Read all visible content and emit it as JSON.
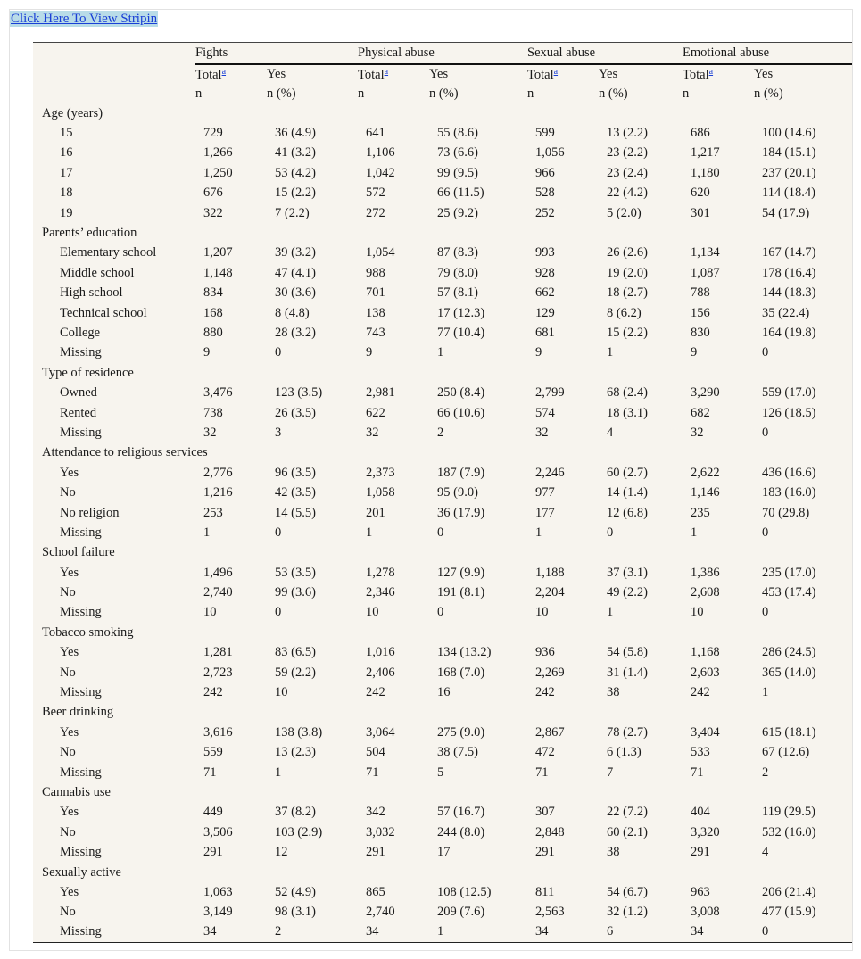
{
  "link": "Click Here To View Stripin",
  "table": {
    "groups": [
      "Fights",
      "Physical abuse",
      "Sexual abuse",
      "Emotional abuse"
    ],
    "total_label": "Total",
    "footnote_mark": "a",
    "yes_label": "Yes",
    "n_label": "n",
    "pct_label": "n (%)",
    "sections": [
      {
        "title": "Age (years)",
        "rows": [
          [
            "15",
            "729",
            "36 (4.9)",
            "641",
            "55 (8.6)",
            "599",
            "13 (2.2)",
            "686",
            "100 (14.6)"
          ],
          [
            "16",
            "1,266",
            "41 (3.2)",
            "1,106",
            "73 (6.6)",
            "1,056",
            "23 (2.2)",
            "1,217",
            "184 (15.1)"
          ],
          [
            "17",
            "1,250",
            "53 (4.2)",
            "1,042",
            "99 (9.5)",
            "966",
            "23 (2.4)",
            "1,180",
            "237 (20.1)"
          ],
          [
            "18",
            "676",
            "15 (2.2)",
            "572",
            "66 (11.5)",
            "528",
            "22 (4.2)",
            "620",
            "114 (18.4)"
          ],
          [
            "19",
            "322",
            "7 (2.2)",
            "272",
            "25 (9.2)",
            "252",
            "5 (2.0)",
            "301",
            "54 (17.9)"
          ]
        ]
      },
      {
        "title": "Parents’ education",
        "rows": [
          [
            "Elementary school",
            "1,207",
            "39 (3.2)",
            "1,054",
            "87 (8.3)",
            "993",
            "26 (2.6)",
            "1,134",
            "167 (14.7)"
          ],
          [
            "Middle school",
            "1,148",
            "47 (4.1)",
            "988",
            "79 (8.0)",
            "928",
            "19 (2.0)",
            "1,087",
            "178 (16.4)"
          ],
          [
            "High school",
            "834",
            "30 (3.6)",
            "701",
            "57 (8.1)",
            "662",
            "18 (2.7)",
            "788",
            "144 (18.3)"
          ],
          [
            "Technical school",
            "168",
            "8 (4.8)",
            "138",
            "17 (12.3)",
            "129",
            "8 (6.2)",
            "156",
            "35 (22.4)"
          ],
          [
            "College",
            "880",
            "28 (3.2)",
            "743",
            "77 (10.4)",
            "681",
            "15 (2.2)",
            "830",
            "164 (19.8)"
          ],
          [
            "Missing",
            "9",
            "0",
            "9",
            "1",
            "9",
            "1",
            "9",
            "0"
          ]
        ]
      },
      {
        "title": "Type of residence",
        "rows": [
          [
            "Owned",
            "3,476",
            "123 (3.5)",
            "2,981",
            "250 (8.4)",
            "2,799",
            "68 (2.4)",
            "3,290",
            "559 (17.0)"
          ],
          [
            "Rented",
            "738",
            "26 (3.5)",
            "622",
            "66 (10.6)",
            "574",
            "18 (3.1)",
            "682",
            "126 (18.5)"
          ],
          [
            "Missing",
            "32",
            "3",
            "32",
            "2",
            "32",
            "4",
            "32",
            "0"
          ]
        ]
      },
      {
        "title": "Attendance to religious services",
        "rows": [
          [
            "Yes",
            "2,776",
            "96 (3.5)",
            "2,373",
            "187 (7.9)",
            "2,246",
            "60 (2.7)",
            "2,622",
            "436 (16.6)"
          ],
          [
            "No",
            "1,216",
            "42 (3.5)",
            "1,058",
            "95 (9.0)",
            "977",
            "14 (1.4)",
            "1,146",
            "183 (16.0)"
          ],
          [
            "No religion",
            "253",
            "14 (5.5)",
            "201",
            "36 (17.9)",
            "177",
            "12 (6.8)",
            "235",
            "70 (29.8)"
          ],
          [
            "Missing",
            "1",
            "0",
            "1",
            "0",
            "1",
            "0",
            "1",
            "0"
          ]
        ]
      },
      {
        "title": "School failure",
        "rows": [
          [
            "Yes",
            "1,496",
            "53 (3.5)",
            "1,278",
            "127 (9.9)",
            "1,188",
            "37 (3.1)",
            "1,386",
            "235 (17.0)"
          ],
          [
            "No",
            "2,740",
            "99 (3.6)",
            "2,346",
            "191 (8.1)",
            "2,204",
            "49 (2.2)",
            "2,608",
            "453 (17.4)"
          ],
          [
            "Missing",
            "10",
            "0",
            "10",
            "0",
            "10",
            "1",
            "10",
            "0"
          ]
        ]
      },
      {
        "title": "Tobacco smoking",
        "rows": [
          [
            "Yes",
            "1,281",
            "83 (6.5)",
            "1,016",
            "134 (13.2)",
            "936",
            "54 (5.8)",
            "1,168",
            "286 (24.5)"
          ],
          [
            "No",
            "2,723",
            "59 (2.2)",
            "2,406",
            "168 (7.0)",
            "2,269",
            "31 (1.4)",
            "2,603",
            "365 (14.0)"
          ],
          [
            "Missing",
            "242",
            "10",
            "242",
            "16",
            "242",
            "38",
            "242",
            "1"
          ]
        ]
      },
      {
        "title": "Beer drinking",
        "rows": [
          [
            "Yes",
            "3,616",
            "138 (3.8)",
            "3,064",
            "275 (9.0)",
            "2,867",
            "78 (2.7)",
            "3,404",
            "615 (18.1)"
          ],
          [
            "No",
            "559",
            "13 (2.3)",
            "504",
            "38 (7.5)",
            "472",
            "6 (1.3)",
            "533",
            "67 (12.6)"
          ],
          [
            "Missing",
            "71",
            "1",
            "71",
            "5",
            "71",
            "7",
            "71",
            "2"
          ]
        ]
      },
      {
        "title": "Cannabis use",
        "rows": [
          [
            "Yes",
            "449",
            "37 (8.2)",
            "342",
            "57 (16.7)",
            "307",
            "22 (7.2)",
            "404",
            "119 (29.5)"
          ],
          [
            "No",
            "3,506",
            "103 (2.9)",
            "3,032",
            "244 (8.0)",
            "2,848",
            "60 (2.1)",
            "3,320",
            "532 (16.0)"
          ],
          [
            "Missing",
            "291",
            "12",
            "291",
            "17",
            "291",
            "38",
            "291",
            "4"
          ]
        ]
      },
      {
        "title": "Sexually active",
        "rows": [
          [
            "Yes",
            "1,063",
            "52 (4.9)",
            "865",
            "108 (12.5)",
            "811",
            "54 (6.7)",
            "963",
            "206 (21.4)"
          ],
          [
            "No",
            "3,149",
            "98 (3.1)",
            "2,740",
            "209 (7.6)",
            "2,563",
            "32 (1.2)",
            "3,008",
            "477 (15.9)"
          ],
          [
            "Missing",
            "34",
            "2",
            "34",
            "1",
            "34",
            "6",
            "34",
            "0"
          ]
        ]
      }
    ]
  }
}
